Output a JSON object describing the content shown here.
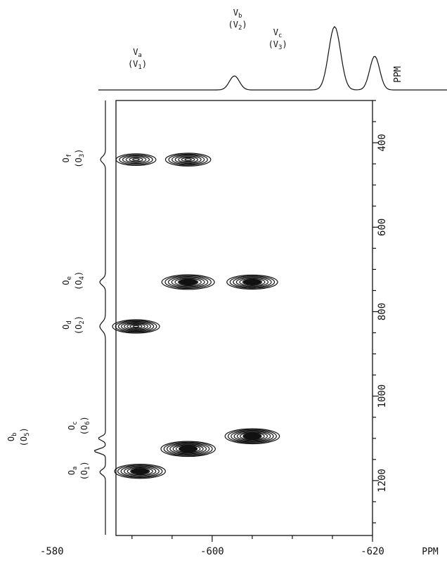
{
  "chart_data": {
    "type": "heatmap",
    "title": "",
    "x_axis": {
      "label": "PPM",
      "range": [
        -588,
        -620
      ],
      "ticks": [
        -580,
        -600,
        -620
      ],
      "tick_labels": [
        "-580",
        "-600",
        "-620"
      ],
      "minor_step": 5
    },
    "y_axis": {
      "label": "PPM",
      "range": [
        300,
        1330
      ],
      "ticks": [
        400,
        600,
        800,
        1000,
        1200
      ],
      "tick_labels": [
        "400",
        "600",
        "800",
        "1000",
        "1200"
      ],
      "minor_step": 50
    },
    "top_projection": {
      "peaks": [
        {
          "label": "V",
          "sub": "a",
          "alt_label": "(V",
          "alt_sub": "1",
          "x": -590.5
        },
        {
          "label": "V",
          "sub": "b",
          "alt_label": "(V",
          "alt_sub": "2",
          "x": -603
        },
        {
          "label": "V",
          "sub": "c",
          "alt_label": "(V",
          "alt_sub": "3",
          "x": -608
        }
      ]
    },
    "side_projection": {
      "peaks": [
        {
          "label": "O",
          "sub": "f",
          "alt_label": "(O",
          "alt_sub": "3",
          "y": 440
        },
        {
          "label": "O",
          "sub": "e",
          "alt_label": "(O",
          "alt_sub": "4",
          "y": 730
        },
        {
          "label": "O",
          "sub": "d",
          "alt_label": "(O",
          "alt_sub": "2",
          "y": 835
        },
        {
          "label": "O",
          "sub": "c",
          "alt_label": "(O",
          "alt_sub": "6",
          "y": 1100
        },
        {
          "label": "O",
          "sub": "b",
          "alt_label": "(O",
          "alt_sub": "5",
          "y": 1130
        },
        {
          "label": "O",
          "sub": "a",
          "alt_label": "(O",
          "alt_sub": "1",
          "y": 1180
        }
      ]
    },
    "cross_peaks": [
      {
        "x": -590.5,
        "y": 440,
        "intensity": 0.55
      },
      {
        "x": -597,
        "y": 440,
        "intensity": 0.7
      },
      {
        "x": -597,
        "y": 730,
        "intensity": 0.9
      },
      {
        "x": -605,
        "y": 730,
        "intensity": 0.85
      },
      {
        "x": -590.5,
        "y": 835,
        "intensity": 0.75
      },
      {
        "x": -605,
        "y": 1095,
        "intensity": 0.95
      },
      {
        "x": -597,
        "y": 1125,
        "intensity": 0.95
      },
      {
        "x": -591,
        "y": 1178,
        "intensity": 0.85
      }
    ]
  }
}
